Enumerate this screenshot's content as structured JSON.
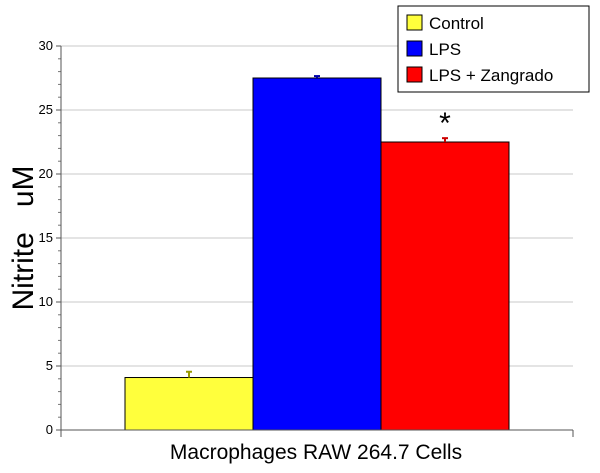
{
  "chart_data": {
    "type": "bar",
    "title": "",
    "xlabel": "Macrophages RAW 264.7 Cells",
    "ylabel": "Nitrite   uM",
    "ylim": [
      0,
      30
    ],
    "yticks": [
      0,
      5,
      10,
      15,
      20,
      25,
      30
    ],
    "grid": true,
    "legend_position": "top-right",
    "series": [
      {
        "name": "Control",
        "value": 4.1,
        "error": 0.45,
        "color": "#ffff3c",
        "error_color": "#9a9a00"
      },
      {
        "name": "LPS",
        "value": 27.5,
        "error": 0.15,
        "color": "#0000ff",
        "error_color": "#0000aa"
      },
      {
        "name": "LPS + Zangrado",
        "value": 22.5,
        "error": 0.3,
        "color": "#ff0000",
        "error_color": "#cc0000"
      }
    ],
    "annotations": [
      {
        "text": "*",
        "series": "LPS + Zangrado"
      }
    ]
  }
}
